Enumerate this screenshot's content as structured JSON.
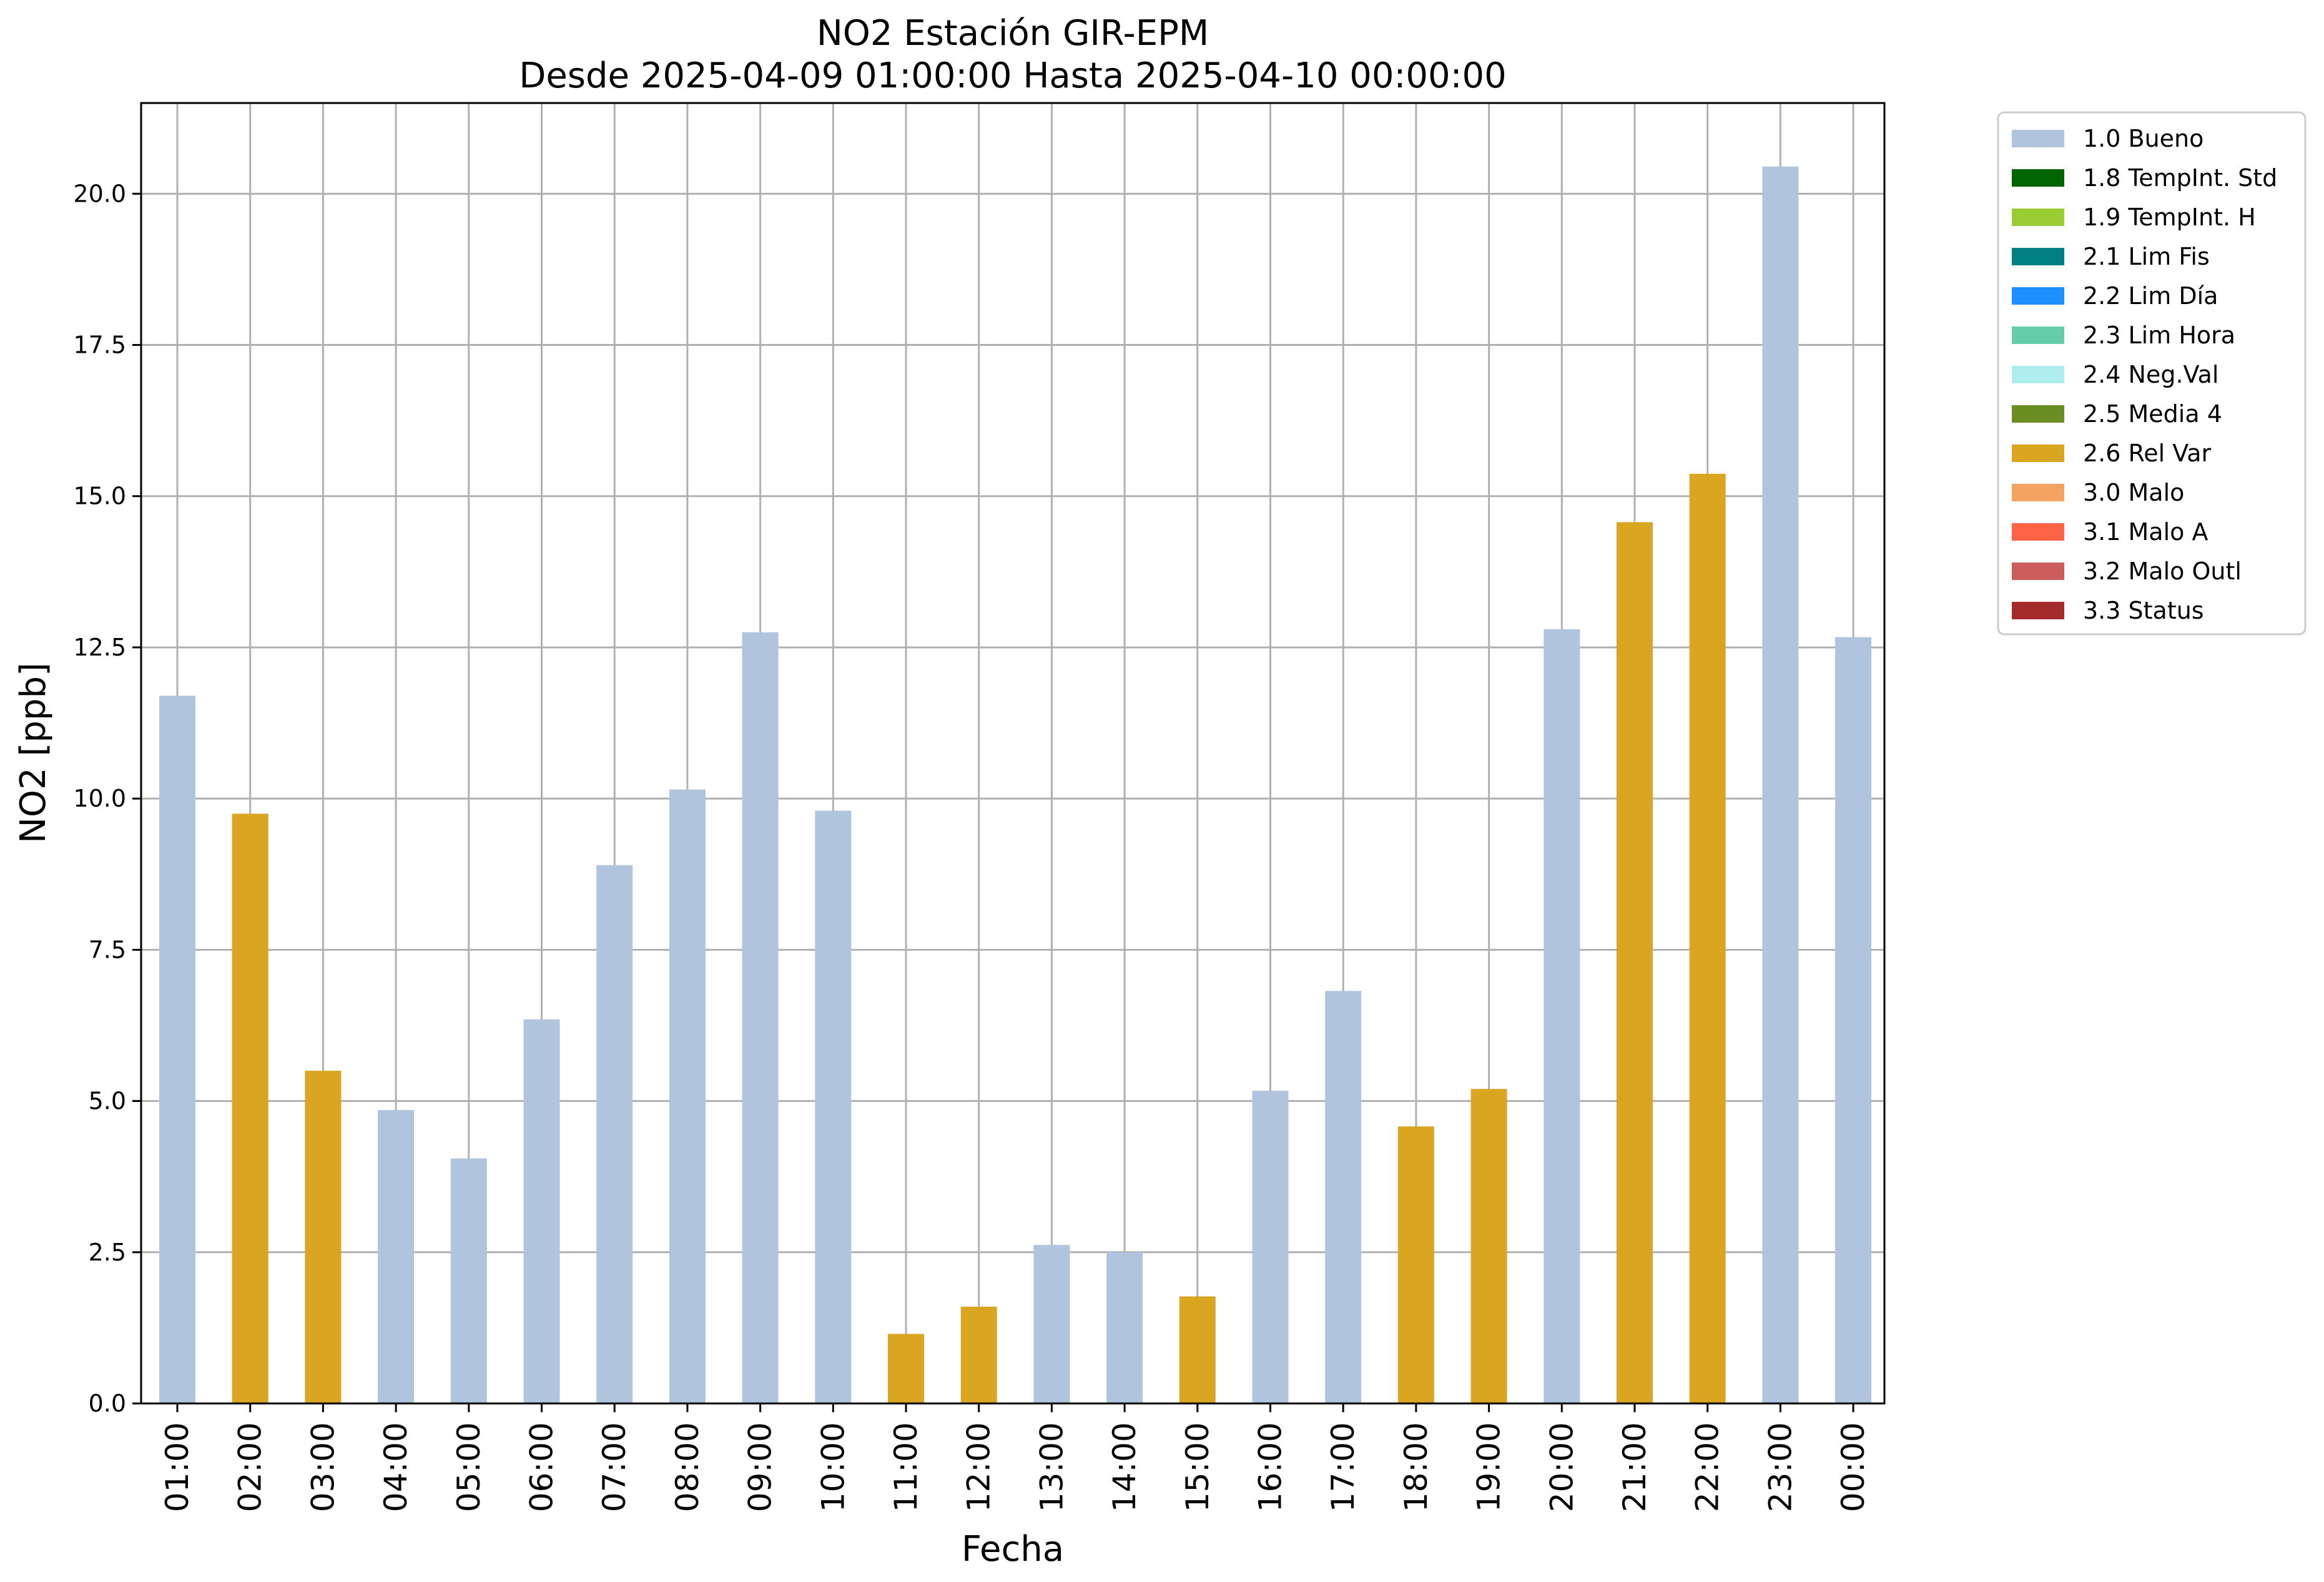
{
  "chart_data": {
    "type": "bar",
    "title": "NO2 Estación GIR-EPM",
    "subtitle": "Desde 2025-04-09 01:00:00 Hasta 2025-04-10 00:00:00",
    "xlabel": "Fecha",
    "ylabel": "NO2 [ppb]",
    "ylim": [
      0,
      21.5
    ],
    "yticks": [
      "0.0",
      "2.5",
      "5.0",
      "7.5",
      "10.0",
      "12.5",
      "15.0",
      "17.5",
      "20.0"
    ],
    "grid": true,
    "legend_position": "outside-top-right",
    "categories": [
      "01:00",
      "02:00",
      "03:00",
      "04:00",
      "05:00",
      "06:00",
      "07:00",
      "08:00",
      "09:00",
      "10:00",
      "11:00",
      "12:00",
      "13:00",
      "14:00",
      "15:00",
      "16:00",
      "17:00",
      "18:00",
      "19:00",
      "20:00",
      "21:00",
      "22:00",
      "23:00",
      "00:00"
    ],
    "values": [
      11.7,
      9.75,
      5.5,
      4.85,
      4.05,
      6.35,
      8.9,
      10.15,
      12.75,
      9.8,
      1.15,
      1.6,
      2.62,
      2.5,
      1.77,
      5.17,
      6.82,
      4.58,
      5.2,
      12.8,
      14.57,
      15.37,
      20.45,
      12.67
    ],
    "flags": [
      "1.0 Bueno",
      "2.6 Rel Var",
      "2.6 Rel Var",
      "1.0 Bueno",
      "1.0 Bueno",
      "1.0 Bueno",
      "1.0 Bueno",
      "1.0 Bueno",
      "1.0 Bueno",
      "1.0 Bueno",
      "2.6 Rel Var",
      "2.6 Rel Var",
      "1.0 Bueno",
      "1.0 Bueno",
      "2.6 Rel Var",
      "1.0 Bueno",
      "1.0 Bueno",
      "2.6 Rel Var",
      "2.6 Rel Var",
      "1.0 Bueno",
      "2.6 Rel Var",
      "2.6 Rel Var",
      "1.0 Bueno",
      "1.0 Bueno"
    ],
    "legend": [
      {
        "label": "1.0 Bueno",
        "color": "#b0c4de"
      },
      {
        "label": "1.8 TempInt. Std",
        "color": "#006400"
      },
      {
        "label": "1.9 TempInt. H",
        "color": "#9acd32"
      },
      {
        "label": "2.1 Lim Fis",
        "color": "#008080"
      },
      {
        "label": "2.2 Lim Día",
        "color": "#1e90ff"
      },
      {
        "label": "2.3 Lim Hora",
        "color": "#66cdaa"
      },
      {
        "label": "2.4 Neg.Val",
        "color": "#afeeee"
      },
      {
        "label": "2.5 Media 4",
        "color": "#6b8e23"
      },
      {
        "label": "2.6 Rel Var",
        "color": "#daa520"
      },
      {
        "label": "3.0 Malo",
        "color": "#f4a460"
      },
      {
        "label": "3.1 Malo A",
        "color": "#ff6347"
      },
      {
        "label": "3.2 Malo Outl",
        "color": "#cd5c5c"
      },
      {
        "label": "3.3 Status",
        "color": "#a52a2a"
      }
    ]
  }
}
